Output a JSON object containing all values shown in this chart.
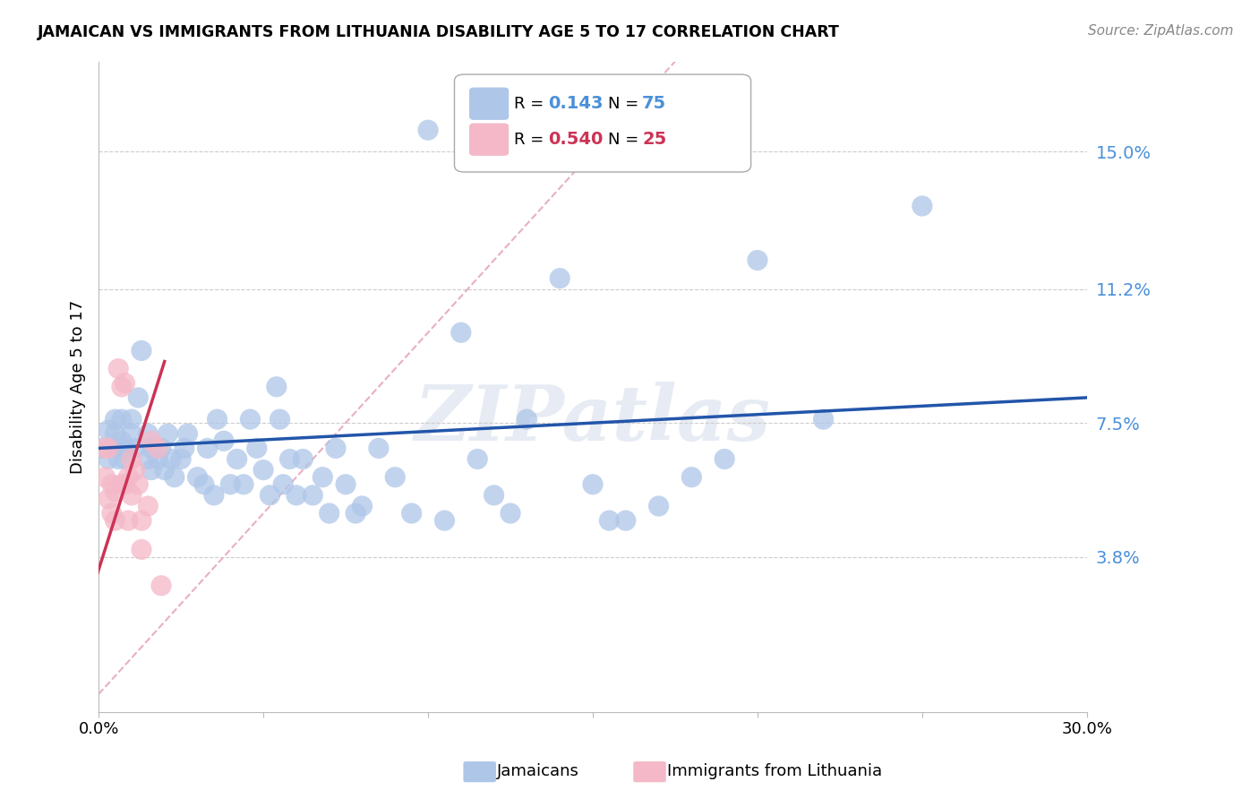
{
  "title": "JAMAICAN VS IMMIGRANTS FROM LITHUANIA DISABILITY AGE 5 TO 17 CORRELATION CHART",
  "source": "Source: ZipAtlas.com",
  "ylabel": "Disability Age 5 to 17",
  "xlabel": "",
  "xlim": [
    0.0,
    0.3
  ],
  "ylim": [
    -0.005,
    0.175
  ],
  "yticks": [
    0.038,
    0.075,
    0.112,
    0.15
  ],
  "ytick_labels": [
    "3.8%",
    "7.5%",
    "11.2%",
    "15.0%"
  ],
  "xticks": [
    0.0,
    0.05,
    0.1,
    0.15,
    0.2,
    0.25,
    0.3
  ],
  "xtick_labels": [
    "0.0%",
    "",
    "",
    "",
    "",
    "",
    "30.0%"
  ],
  "legend_val1": "0.143",
  "legend_count1": "75",
  "legend_val2": "0.540",
  "legend_count2": "25",
  "blue_color": "#aec6e8",
  "pink_color": "#f4b8c8",
  "blue_line_color": "#2255aa",
  "pink_line_color": "#cc3355",
  "diag_line_color": "#e8b0be",
  "watermark": "ZIPatlas",
  "scatter_blue": [
    [
      0.001,
      0.068
    ],
    [
      0.003,
      0.073
    ],
    [
      0.003,
      0.065
    ],
    [
      0.005,
      0.076
    ],
    [
      0.005,
      0.072
    ],
    [
      0.006,
      0.068
    ],
    [
      0.006,
      0.065
    ],
    [
      0.007,
      0.076
    ],
    [
      0.007,
      0.07
    ],
    [
      0.008,
      0.068
    ],
    [
      0.008,
      0.065
    ],
    [
      0.01,
      0.076
    ],
    [
      0.01,
      0.072
    ],
    [
      0.011,
      0.068
    ],
    [
      0.012,
      0.082
    ],
    [
      0.013,
      0.095
    ],
    [
      0.015,
      0.072
    ],
    [
      0.015,
      0.065
    ],
    [
      0.016,
      0.068
    ],
    [
      0.016,
      0.062
    ],
    [
      0.018,
      0.065
    ],
    [
      0.019,
      0.068
    ],
    [
      0.02,
      0.062
    ],
    [
      0.021,
      0.072
    ],
    [
      0.022,
      0.065
    ],
    [
      0.023,
      0.06
    ],
    [
      0.025,
      0.065
    ],
    [
      0.026,
      0.068
    ],
    [
      0.027,
      0.072
    ],
    [
      0.03,
      0.06
    ],
    [
      0.032,
      0.058
    ],
    [
      0.033,
      0.068
    ],
    [
      0.035,
      0.055
    ],
    [
      0.036,
      0.076
    ],
    [
      0.038,
      0.07
    ],
    [
      0.04,
      0.058
    ],
    [
      0.042,
      0.065
    ],
    [
      0.044,
      0.058
    ],
    [
      0.046,
      0.076
    ],
    [
      0.048,
      0.068
    ],
    [
      0.05,
      0.062
    ],
    [
      0.052,
      0.055
    ],
    [
      0.054,
      0.085
    ],
    [
      0.055,
      0.076
    ],
    [
      0.056,
      0.058
    ],
    [
      0.058,
      0.065
    ],
    [
      0.06,
      0.055
    ],
    [
      0.062,
      0.065
    ],
    [
      0.065,
      0.055
    ],
    [
      0.068,
      0.06
    ],
    [
      0.07,
      0.05
    ],
    [
      0.072,
      0.068
    ],
    [
      0.075,
      0.058
    ],
    [
      0.078,
      0.05
    ],
    [
      0.08,
      0.052
    ],
    [
      0.085,
      0.068
    ],
    [
      0.09,
      0.06
    ],
    [
      0.095,
      0.05
    ],
    [
      0.1,
      0.156
    ],
    [
      0.105,
      0.048
    ],
    [
      0.11,
      0.1
    ],
    [
      0.115,
      0.065
    ],
    [
      0.12,
      0.055
    ],
    [
      0.125,
      0.05
    ],
    [
      0.13,
      0.076
    ],
    [
      0.14,
      0.115
    ],
    [
      0.15,
      0.058
    ],
    [
      0.155,
      0.048
    ],
    [
      0.16,
      0.048
    ],
    [
      0.17,
      0.052
    ],
    [
      0.18,
      0.06
    ],
    [
      0.19,
      0.065
    ],
    [
      0.2,
      0.12
    ],
    [
      0.22,
      0.076
    ],
    [
      0.25,
      0.135
    ]
  ],
  "scatter_pink": [
    [
      0.002,
      0.068
    ],
    [
      0.003,
      0.068
    ],
    [
      0.004,
      0.058
    ],
    [
      0.004,
      0.05
    ],
    [
      0.005,
      0.056
    ],
    [
      0.005,
      0.048
    ],
    [
      0.006,
      0.09
    ],
    [
      0.007,
      0.085
    ],
    [
      0.007,
      0.058
    ],
    [
      0.008,
      0.086
    ],
    [
      0.008,
      0.058
    ],
    [
      0.009,
      0.06
    ],
    [
      0.009,
      0.048
    ],
    [
      0.01,
      0.065
    ],
    [
      0.01,
      0.055
    ],
    [
      0.011,
      0.062
    ],
    [
      0.012,
      0.058
    ],
    [
      0.013,
      0.048
    ],
    [
      0.013,
      0.04
    ],
    [
      0.015,
      0.052
    ],
    [
      0.016,
      0.07
    ],
    [
      0.018,
      0.068
    ],
    [
      0.019,
      0.03
    ],
    [
      0.002,
      0.06
    ],
    [
      0.003,
      0.054
    ]
  ],
  "blue_trend": [
    0.0,
    0.3,
    0.068,
    0.082
  ],
  "pink_trend": [
    -0.005,
    0.02,
    0.02,
    0.092
  ],
  "diag_trend_x": [
    0.0,
    0.175
  ],
  "diag_trend_y": [
    0.0,
    0.175
  ]
}
